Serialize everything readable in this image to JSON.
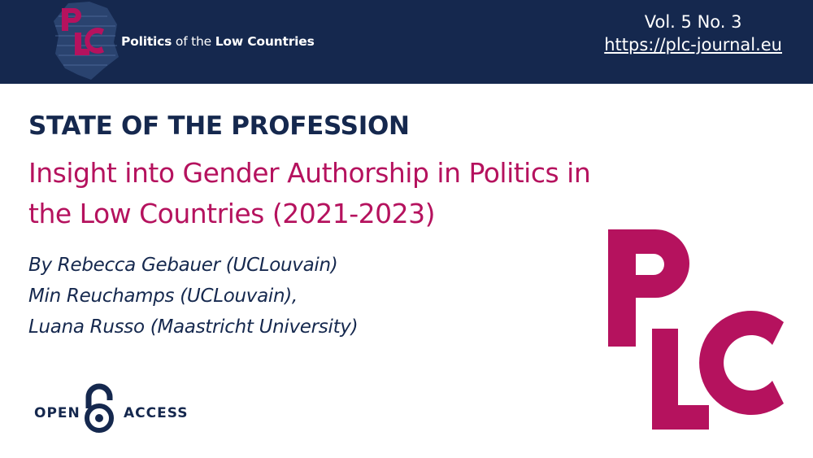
{
  "header": {
    "logo_letters": "PLC",
    "brand_parts": [
      "Politics",
      "of the",
      "Low Countries"
    ],
    "volume": "Vol. 5 No. 3",
    "url": "https://plc-journal.eu"
  },
  "content": {
    "section": "STATE OF THE PROFESSION",
    "title_lines": [
      "Insight into Gender Authorship in Politics in",
      "the Low Countries (2021-2023)"
    ],
    "authors": [
      "By Rebecca Gebauer (UCLouvain)",
      "Min Reuchamps (UCLouvain),",
      "Luana Russo (Maastricht University)"
    ]
  },
  "open_access": {
    "left": "OPEN",
    "right": "ACCESS",
    "icon": "open-lock-icon"
  },
  "colors": {
    "navy": "#15284e",
    "magenta": "#b5125e",
    "white": "#ffffff"
  }
}
